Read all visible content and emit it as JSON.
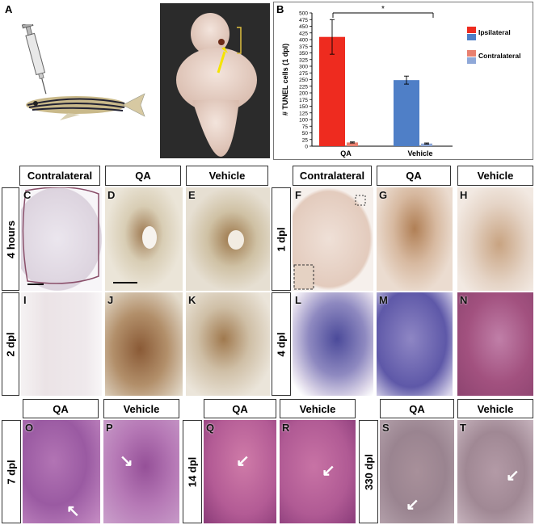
{
  "panel_a": {
    "letter": "A"
  },
  "panel_b": {
    "letter": "B"
  },
  "headers": {
    "contralateral": "Contralateral",
    "qa": "QA",
    "vehicle": "Vehicle"
  },
  "rows": {
    "four_hours": "4 hours",
    "two_dpl": "2 dpl",
    "one_dpl": "1 dpl",
    "four_dpl": "4 dpl",
    "seven_dpl": "7 dpl",
    "fourteen_dpl": "14 dpl",
    "three_thirty_dpl": "330 dpl"
  },
  "letters": {
    "C": "C",
    "D": "D",
    "E": "E",
    "F": "F",
    "G": "G",
    "H": "H",
    "I": "I",
    "J": "J",
    "K": "K",
    "L": "L",
    "M": "M",
    "N": "N",
    "O": "O",
    "P": "P",
    "Q": "Q",
    "R": "R",
    "S": "S",
    "T": "T"
  },
  "colors": {
    "ipsilateral_red": "#ee2b1f",
    "ipsilateral_blue": "#4f7fc7",
    "contralateral_red": "#e88070",
    "contralateral_blue": "#8fa8d8"
  },
  "chart_data": {
    "type": "bar",
    "ylabel": "# TUNEL cells  (1 dpl)",
    "ylim": [
      0,
      500
    ],
    "yticks": [
      "0",
      "25",
      "50",
      "75",
      "100",
      "125",
      "150",
      "175",
      "200",
      "225",
      "250",
      "275",
      "300",
      "325",
      "350",
      "375",
      "400",
      "425",
      "450",
      "475",
      "500"
    ],
    "categories": [
      "QA",
      "Vehicle"
    ],
    "series": [
      {
        "name": "Ipsilateral",
        "values": [
          410,
          248
        ],
        "errors": [
          65,
          15
        ]
      },
      {
        "name": "Contralateral",
        "values": [
          14,
          10
        ],
        "errors": [
          2,
          2
        ]
      }
    ],
    "significance": "*",
    "legend": [
      "Ipsilateral",
      "Contralateral"
    ],
    "legend_position": "top-right"
  }
}
